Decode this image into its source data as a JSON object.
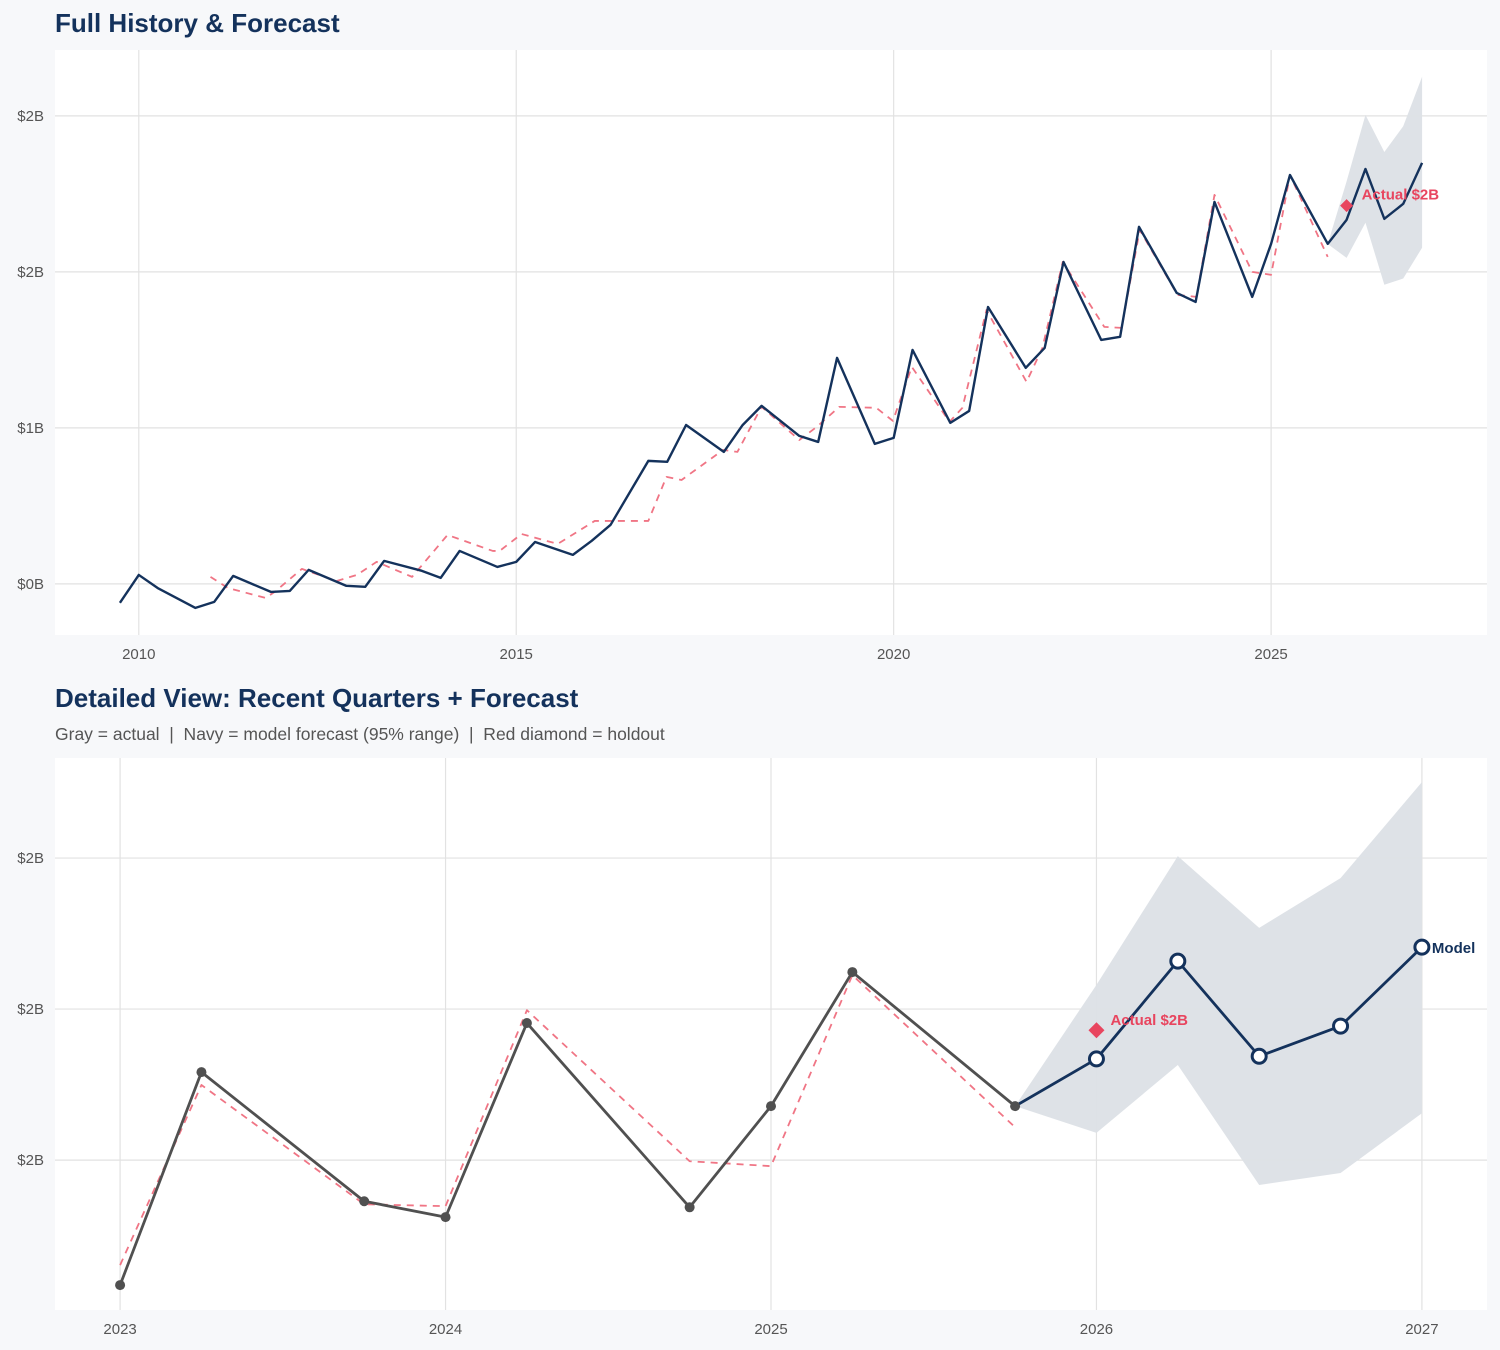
{
  "colors": {
    "background": "#f7f8fa",
    "panel": "#ffffff",
    "grid": "#e2e2e2",
    "navy": "#14325c",
    "actual_gray": "#505050",
    "fitted_red": "#f07585",
    "holdout_red": "#e8455f",
    "band": "#dce0e6"
  },
  "chart_data": [
    {
      "type": "line",
      "title": "Full History & Forecast",
      "xlim": [
        2008.89,
        2027.86
      ],
      "ylim": [
        -0.262,
        2.738
      ],
      "x_ticks": [
        2010,
        2015,
        2020,
        2025
      ],
      "x_tick_labels": [
        "2010",
        "2015",
        "2020",
        "2025"
      ],
      "y_ticks": [
        0,
        0.8,
        1.6,
        2.4
      ],
      "y_tick_labels": [
        "$0B",
        "$1B",
        "$2B",
        "$2B"
      ],
      "grid": true,
      "band": {
        "x": [
          2025.75,
          2026.0,
          2026.25,
          2026.5,
          2026.75,
          2027.0
        ],
        "upper": [
          1.743,
          2.064,
          2.405,
          2.215,
          2.347,
          2.601
        ],
        "lower": [
          1.743,
          1.672,
          1.852,
          1.534,
          1.566,
          1.724
        ]
      },
      "series": [
        {
          "role": "fitted",
          "style": "dashed",
          "color": "#f07585",
          "points": [
            [
              2010.95,
              0.036
            ],
            [
              2011.18,
              -0.021
            ],
            [
              2011.68,
              -0.072
            ],
            [
              2011.8,
              -0.041
            ],
            [
              2012.16,
              0.077
            ],
            [
              2012.62,
              0.015
            ],
            [
              2012.89,
              0.046
            ],
            [
              2013.15,
              0.113
            ],
            [
              2013.62,
              0.036
            ],
            [
              2014.09,
              0.251
            ],
            [
              2014.69,
              0.169
            ],
            [
              2014.78,
              0.169
            ],
            [
              2015.07,
              0.256
            ],
            [
              2015.55,
              0.205
            ],
            [
              2016.04,
              0.323
            ],
            [
              2016.75,
              0.323
            ],
            [
              2016.99,
              0.549
            ],
            [
              2017.19,
              0.533
            ],
            [
              2017.74,
              0.687
            ],
            [
              2017.93,
              0.677
            ],
            [
              2018.25,
              0.908
            ],
            [
              2018.75,
              0.738
            ],
            [
              2018.98,
              0.805
            ],
            [
              2019.28,
              0.908
            ],
            [
              2019.77,
              0.903
            ],
            [
              2019.99,
              0.836
            ],
            [
              2020.24,
              1.113
            ],
            [
              2020.74,
              0.831
            ],
            [
              2020.91,
              0.903
            ],
            [
              2021.23,
              1.405
            ],
            [
              2021.76,
              1.036
            ],
            [
              2021.97,
              1.21
            ],
            [
              2022.24,
              1.651
            ],
            [
              2022.79,
              1.318
            ],
            [
              2023.02,
              1.313
            ],
            [
              2023.26,
              1.815
            ],
            [
              2023.76,
              1.482
            ],
            [
              2024.01,
              1.472
            ],
            [
              2024.25,
              1.995
            ],
            [
              2024.75,
              1.6
            ],
            [
              2025.0,
              1.585
            ],
            [
              2025.25,
              2.097
            ],
            [
              2025.75,
              1.677
            ]
          ]
        },
        {
          "role": "history-and-forecast",
          "style": "solid",
          "color": "#14325c",
          "points": [
            [
              2009.75,
              -0.097
            ],
            [
              2010.0,
              0.046
            ],
            [
              2010.25,
              -0.021
            ],
            [
              2010.75,
              -0.123
            ],
            [
              2011.0,
              -0.092
            ],
            [
              2011.25,
              0.041
            ],
            [
              2011.75,
              -0.041
            ],
            [
              2012.0,
              -0.036
            ],
            [
              2012.25,
              0.072
            ],
            [
              2012.75,
              -0.01
            ],
            [
              2013.0,
              -0.015
            ],
            [
              2013.25,
              0.118
            ],
            [
              2013.75,
              0.067
            ],
            [
              2014.0,
              0.031
            ],
            [
              2014.25,
              0.169
            ],
            [
              2014.75,
              0.087
            ],
            [
              2015.0,
              0.113
            ],
            [
              2015.25,
              0.215
            ],
            [
              2015.75,
              0.149
            ],
            [
              2016.0,
              0.221
            ],
            [
              2016.25,
              0.303
            ],
            [
              2016.75,
              0.631
            ],
            [
              2017.0,
              0.626
            ],
            [
              2017.25,
              0.815
            ],
            [
              2017.75,
              0.677
            ],
            [
              2018.0,
              0.815
            ],
            [
              2018.25,
              0.913
            ],
            [
              2018.75,
              0.759
            ],
            [
              2019.0,
              0.728
            ],
            [
              2019.25,
              1.159
            ],
            [
              2019.75,
              0.718
            ],
            [
              2020.0,
              0.749
            ],
            [
              2020.25,
              1.2
            ],
            [
              2020.75,
              0.826
            ],
            [
              2021.0,
              0.887
            ],
            [
              2021.25,
              1.42
            ],
            [
              2021.75,
              1.108
            ],
            [
              2022.0,
              1.21
            ],
            [
              2022.25,
              1.651
            ],
            [
              2022.75,
              1.251
            ],
            [
              2023.0,
              1.267
            ],
            [
              2023.25,
              1.831
            ],
            [
              2023.75,
              1.492
            ],
            [
              2024.0,
              1.446
            ],
            [
              2024.25,
              1.959
            ],
            [
              2024.75,
              1.472
            ],
            [
              2025.0,
              1.744
            ],
            [
              2025.25,
              2.097
            ],
            [
              2025.75,
              1.744
            ],
            [
              2026.0,
              1.867
            ],
            [
              2026.25,
              2.128
            ],
            [
              2026.5,
              1.872
            ],
            [
              2026.75,
              1.949
            ],
            [
              2027.0,
              2.159
            ]
          ]
        }
      ],
      "holdout": {
        "x": 2026.0,
        "y": 1.94,
        "label": "Actual $2B"
      }
    },
    {
      "type": "line",
      "title": "Detailed View: Recent Quarters + Forecast",
      "subtitle": "Gray = actual  |  Navy = model forecast (95% range)  |  Red diamond = holdout",
      "xlim": [
        2022.8,
        2027.2
      ],
      "ylim": [
        1.203,
        2.665
      ],
      "x_ticks": [
        2023,
        2024,
        2025,
        2026,
        2027
      ],
      "x_tick_labels": [
        "2023",
        "2024",
        "2025",
        "2026",
        "2027"
      ],
      "y_ticks": [
        1.6,
        2.0,
        2.4
      ],
      "y_tick_labels": [
        "$2B",
        "$2B",
        "$2B"
      ],
      "grid": true,
      "band": {
        "x": [
          2025.75,
          2026.0,
          2026.25,
          2026.5,
          2026.75,
          2027.0
        ],
        "upper": [
          1.743,
          2.064,
          2.405,
          2.215,
          2.347,
          2.601
        ],
        "lower": [
          1.743,
          1.672,
          1.852,
          1.534,
          1.566,
          1.724
        ]
      },
      "series": [
        {
          "role": "fitted",
          "style": "dashed",
          "color": "#f07585",
          "points": [
            [
              2023.0,
              1.322
            ],
            [
              2023.25,
              1.799
            ],
            [
              2023.75,
              1.483
            ],
            [
              2024.0,
              1.478
            ],
            [
              2024.25,
              1.997
            ],
            [
              2024.75,
              1.597
            ],
            [
              2025.0,
              1.584
            ],
            [
              2025.25,
              2.09
            ],
            [
              2025.75,
              1.687
            ]
          ]
        },
        {
          "role": "actual",
          "style": "solid",
          "color": "#505050",
          "markers": "filled",
          "points": [
            [
              2023.0,
              1.269
            ],
            [
              2023.25,
              1.833
            ],
            [
              2023.75,
              1.491
            ],
            [
              2024.0,
              1.449
            ],
            [
              2024.25,
              1.963
            ],
            [
              2024.75,
              1.475
            ],
            [
              2025.0,
              1.743
            ],
            [
              2025.25,
              2.098
            ],
            [
              2025.75,
              1.743
            ]
          ]
        },
        {
          "role": "forecast",
          "style": "solid",
          "color": "#14325c",
          "markers": "open",
          "points": [
            [
              2025.75,
              1.743
            ],
            [
              2026.0,
              1.868
            ],
            [
              2026.25,
              2.127
            ],
            [
              2026.5,
              1.875
            ],
            [
              2026.75,
              1.955
            ],
            [
              2027.0,
              2.164
            ]
          ],
          "end_label": "Model"
        }
      ],
      "holdout": {
        "x": 2026.0,
        "y": 1.944,
        "label": "Actual $2B"
      }
    }
  ]
}
